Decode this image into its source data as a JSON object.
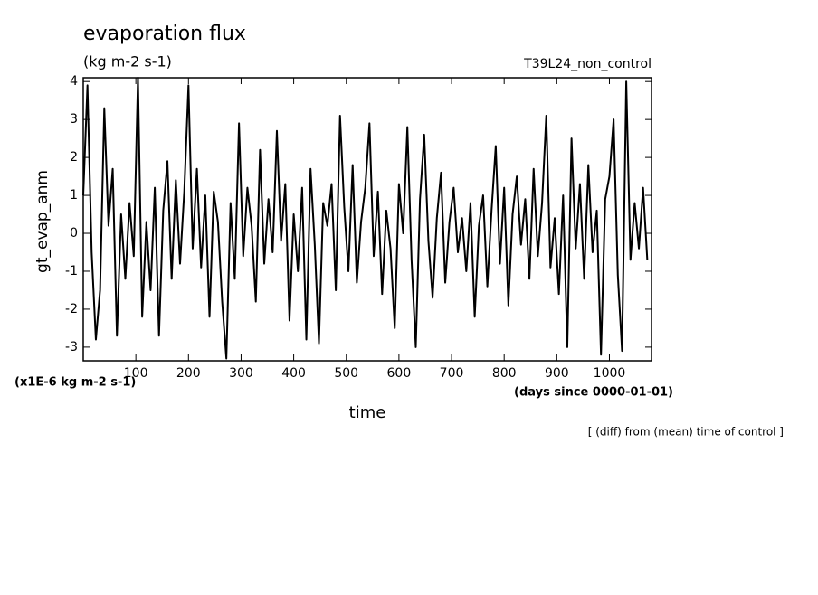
{
  "chart_data": {
    "type": "line",
    "title": "evaporation flux",
    "subtitle": "(kg m-2 s-1)",
    "run_label": "T39L24_non_control",
    "y_label": "gt_evap_anm",
    "y_unit": "(x1E-6 kg m-2 s-1)",
    "x_unit": "(days since 0000-01-01)",
    "x_label": "time",
    "annotation": "[ (diff) from (mean) time of control ]",
    "xlim": [
      0,
      1080
    ],
    "ylim": [
      -3.36,
      4.1
    ],
    "xticks": [
      100,
      200,
      300,
      400,
      500,
      600,
      700,
      800,
      900,
      1000
    ],
    "yticks": [
      -3,
      -2,
      -1,
      0,
      1,
      2,
      3,
      4
    ],
    "series": [
      {
        "name": "gt_evap_anm",
        "color": "#000000",
        "x": [
          0,
          8,
          16,
          24,
          32,
          40,
          48,
          56,
          64,
          72,
          80,
          88,
          96,
          104,
          112,
          120,
          128,
          136,
          144,
          152,
          160,
          168,
          176,
          184,
          192,
          200,
          208,
          216,
          224,
          232,
          240,
          248,
          256,
          264,
          272,
          280,
          288,
          296,
          304,
          312,
          320,
          328,
          336,
          344,
          352,
          360,
          368,
          376,
          384,
          392,
          400,
          408,
          416,
          424,
          432,
          440,
          448,
          456,
          464,
          472,
          480,
          488,
          496,
          504,
          512,
          520,
          528,
          536,
          544,
          552,
          560,
          568,
          576,
          584,
          592,
          600,
          608,
          616,
          624,
          632,
          640,
          648,
          656,
          664,
          672,
          680,
          688,
          696,
          704,
          712,
          720,
          728,
          736,
          744,
          752,
          760,
          768,
          776,
          784,
          792,
          800,
          808,
          816,
          824,
          832,
          840,
          848,
          856,
          864,
          872,
          880,
          888,
          896,
          904,
          912,
          920,
          928,
          936,
          944,
          952,
          960,
          968,
          976,
          984,
          992,
          1000,
          1008,
          1016,
          1024,
          1032,
          1040,
          1048,
          1056,
          1064,
          1072
        ],
        "values": [
          1.0,
          3.9,
          -0.5,
          -2.8,
          -1.5,
          3.3,
          0.2,
          1.7,
          -2.7,
          0.5,
          -1.2,
          0.8,
          -0.6,
          4.1,
          -2.2,
          0.3,
          -1.5,
          1.2,
          -2.7,
          0.6,
          1.9,
          -1.2,
          1.4,
          -0.8,
          1.1,
          3.9,
          -0.4,
          1.7,
          -0.9,
          1.0,
          -2.2,
          1.1,
          0.3,
          -1.8,
          -3.3,
          0.8,
          -1.2,
          2.9,
          -0.6,
          1.2,
          0.2,
          -1.8,
          2.2,
          -0.8,
          0.9,
          -0.5,
          2.7,
          -0.2,
          1.3,
          -2.3,
          0.5,
          -1.0,
          1.2,
          -2.8,
          1.7,
          -0.3,
          -2.9,
          0.8,
          0.2,
          1.3,
          -1.5,
          3.1,
          0.7,
          -1.0,
          1.8,
          -1.3,
          0.3,
          1.2,
          2.9,
          -0.6,
          1.1,
          -1.6,
          0.6,
          -0.4,
          -2.5,
          1.3,
          0.0,
          2.8,
          -0.7,
          -3.0,
          0.9,
          2.6,
          -0.2,
          -1.7,
          0.4,
          1.6,
          -1.3,
          0.3,
          1.2,
          -0.5,
          0.4,
          -1.0,
          0.8,
          -2.2,
          0.2,
          1.0,
          -1.4,
          0.6,
          2.3,
          -0.8,
          1.2,
          -1.9,
          0.5,
          1.5,
          -0.3,
          0.9,
          -1.2,
          1.7,
          -0.6,
          0.8,
          3.1,
          -0.9,
          0.4,
          -1.6,
          1.0,
          -3.0,
          2.5,
          -0.4,
          1.3,
          -1.2,
          1.8,
          -0.5,
          0.6,
          -3.2,
          0.9,
          1.5,
          3.0,
          -1.1,
          -3.1,
          4.0,
          -0.7,
          0.8,
          -0.4,
          1.2,
          -0.7
        ]
      }
    ]
  }
}
